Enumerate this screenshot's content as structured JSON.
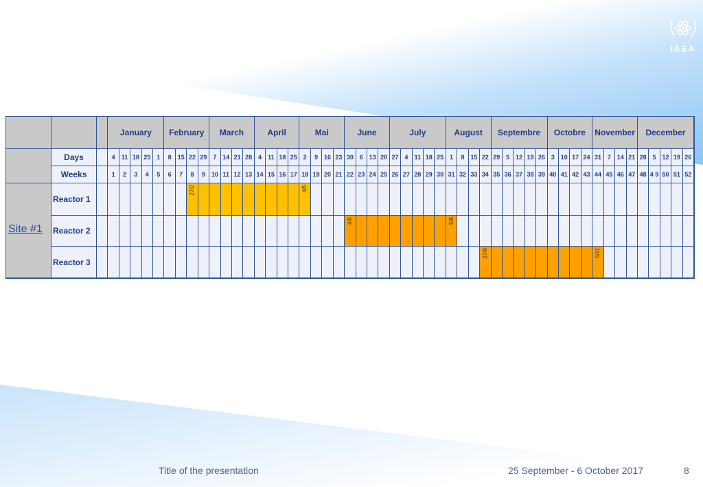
{
  "logo": {
    "text": "IAEA"
  },
  "table": {
    "months": [
      "January",
      "February",
      "March",
      "April",
      "Mai",
      "June",
      "July",
      "August",
      "Septembre",
      "Octobre",
      "November",
      "December"
    ],
    "month_weeks": [
      5,
      4,
      4,
      4,
      4,
      4,
      5,
      4,
      5,
      4,
      4,
      5
    ],
    "days_label": "Days",
    "weeks_label": "Weeks",
    "days": [
      "4",
      "11",
      "18",
      "25",
      "1",
      "8",
      "15",
      "22",
      "29",
      "7",
      "14",
      "21",
      "28",
      "4",
      "11",
      "18",
      "25",
      "2",
      "9",
      "16",
      "23",
      "30",
      "6",
      "13",
      "20",
      "27",
      "4",
      "11",
      "18",
      "25",
      "1",
      "8",
      "15",
      "22",
      "29",
      "5",
      "12",
      "19",
      "26",
      "3",
      "10",
      "17",
      "24",
      "31",
      "7",
      "14",
      "21",
      "28",
      "5",
      "12",
      "19",
      "26"
    ],
    "weeks": [
      "1",
      "2",
      "3",
      "4",
      "5",
      "6",
      "7",
      "8",
      "9",
      "10",
      "11",
      "12",
      "13",
      "14",
      "15",
      "16",
      "17",
      "18",
      "19",
      "20",
      "21",
      "22",
      "23",
      "24",
      "25",
      "26",
      "27",
      "28",
      "29",
      "30",
      "31",
      "32",
      "33",
      "34",
      "35",
      "36",
      "37",
      "38",
      "39",
      "40",
      "41",
      "42",
      "43",
      "44",
      "45",
      "46",
      "47",
      "48",
      "4 9",
      "50",
      "51",
      "52"
    ],
    "site_label": "Site #1",
    "reactors": [
      {
        "label": "Reactor 1",
        "start_week": 8,
        "end_week": 18,
        "start_date": "27/2",
        "end_date": "4/5",
        "color": "#ffc000"
      },
      {
        "label": "Reactor 2",
        "start_week": 22,
        "end_week": 31,
        "start_date": "4/6",
        "end_date": "5/8",
        "color": "#ffa000"
      },
      {
        "label": "Reactor 3",
        "start_week": 34,
        "end_week": 44,
        "start_date": "27/8",
        "end_date": "6/11",
        "color": "#ffa000"
      }
    ]
  },
  "footer": {
    "title": "Title of the presentation",
    "date": "25 September - 6 October 2017",
    "page": "8"
  }
}
